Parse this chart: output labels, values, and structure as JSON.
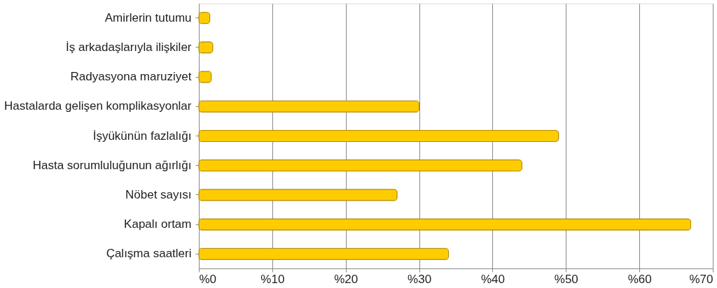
{
  "chart_data": {
    "type": "bar",
    "orientation": "horizontal",
    "categories": [
      "Amirlerin tutumu",
      "İş arkadaşlarıyla ilişkiler",
      "Radyasyona maruziyet",
      "Hastalarda gelişen komplikasyonlar",
      "İşyükünün fazlalığı",
      "Hasta sorumluluğunun ağırlığı",
      "Nöbet sayısı",
      "Kapalı ortam",
      "Çalışma saatleri"
    ],
    "values": [
      1.5,
      1.9,
      1.7,
      30,
      49,
      44,
      27,
      67,
      34
    ],
    "color": "#ffcc00",
    "xlim": [
      0,
      70
    ],
    "xticks": [
      {
        "value": 0,
        "label": "%0"
      },
      {
        "value": 10,
        "label": "%10"
      },
      {
        "value": 20,
        "label": "%20"
      },
      {
        "value": 30,
        "label": "%30"
      },
      {
        "value": 40,
        "label": "%40"
      },
      {
        "value": 50,
        "label": "%50"
      },
      {
        "value": 60,
        "label": "%60"
      },
      {
        "value": 70,
        "label": "%70"
      }
    ],
    "grid": "x"
  }
}
